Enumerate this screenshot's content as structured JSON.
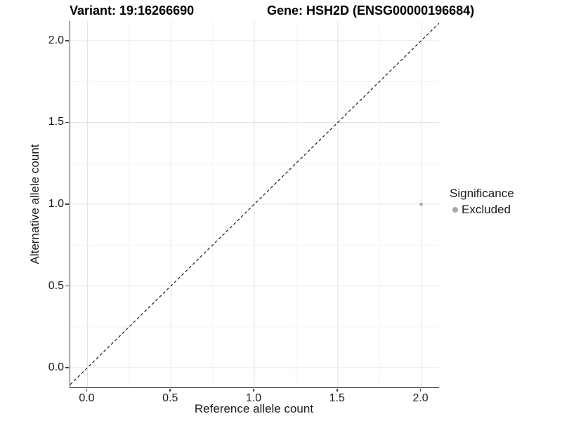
{
  "figure": {
    "background": "#ffffff"
  },
  "chart_data": {
    "type": "scatter",
    "titles": {
      "variant": "Variant: 19:16266690",
      "gene": "Gene: HSH2D (ENSG00000196684)"
    },
    "xlabel": "Reference allele count",
    "ylabel": "Alternative allele count",
    "xlim": [
      -0.103,
      2.107
    ],
    "ylim": [
      -0.12,
      2.12
    ],
    "xticks": [
      0.0,
      0.5,
      1.0,
      1.5,
      2.0
    ],
    "yticks": [
      0.0,
      0.5,
      1.0,
      1.5,
      2.0
    ],
    "x_minor": [
      0.25,
      0.75,
      1.25,
      1.75
    ],
    "y_minor": [
      0.25,
      0.75,
      1.25,
      1.75
    ],
    "tick_decimals": 1,
    "grid": {
      "show": true,
      "major_color": "#e4e4e4",
      "minor_color": "#f2f2f2"
    },
    "axis": {
      "line_color": "#3f3f3f",
      "tick_color": "#3f3f3f",
      "text_color": "#1a1a1a"
    },
    "identity_line": {
      "show": true,
      "equation": "y = x",
      "style": "dashed",
      "color": "#1a1a1a"
    },
    "series": [
      {
        "name": "Excluded",
        "color": "#a9a9a9",
        "points": [
          {
            "x": 2.0,
            "y": 1.0
          }
        ]
      }
    ],
    "legend": {
      "title": "Significance",
      "position": "right",
      "items": [
        {
          "label": "Excluded",
          "color": "#a9a9a9"
        }
      ]
    }
  }
}
